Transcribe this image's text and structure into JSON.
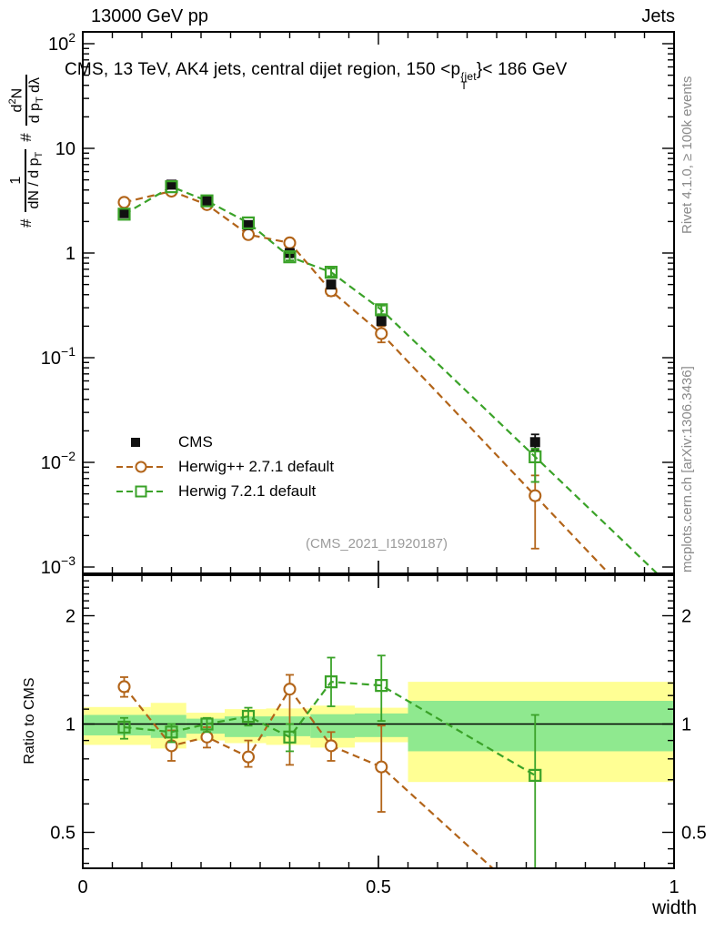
{
  "header": {
    "left": "13000 GeV pp",
    "right": "Jets"
  },
  "title": {
    "part1": "CMS, 13 TeV, AK4 jets, central dijet region, 150 <p",
    "sup": "{jet",
    "sub": "T",
    "part2": "}< 186 GeV"
  },
  "ylabel": {
    "hash1": "#",
    "frac1_num": "1",
    "frac1_den_a": "dN / d p",
    "frac1_den_sub": "T",
    "hash2": "#",
    "frac2_num_a": "d",
    "frac2_num_sup": "2",
    "frac2_num_b": "N",
    "frac2_den_a": "d p",
    "frac2_den_sub": "T",
    "frac2_den_b": " dλ"
  },
  "side_notes": {
    "top": "Rivet 4.1.0, ≥ 100k events",
    "bottom": "mcplots.cern.ch [arXiv:1306.3436]"
  },
  "watermark": "(CMS_2021_I1920187)",
  "legend": {
    "items": [
      {
        "label": "CMS",
        "marker": "filled-square",
        "line": "none"
      },
      {
        "label": "Herwig++ 2.7.1 default",
        "marker": "open-circle",
        "line": "dashed"
      },
      {
        "label": "Herwig 7.2.1 default",
        "marker": "open-square",
        "line": "dashed"
      }
    ]
  },
  "axes": {
    "x_tick_labels": [
      "0",
      "0.5",
      "1"
    ],
    "x_tick_values": [
      0,
      0.5,
      1
    ],
    "main_ytick_exponents": [
      2,
      1,
      0,
      -1,
      -2,
      -3
    ],
    "ratio_ytick_labels": [
      "2",
      "1",
      "0.5"
    ],
    "ratio_ytick_values": [
      2,
      1,
      0.5
    ]
  },
  "colors": {
    "frame": "#000000",
    "gray_text": "#8a8a8a",
    "watermark": "#9b9b9b"
  },
  "chart_data": {
    "type": "scatter",
    "title": "CMS, 13 TeV, AK4 jets, central dijet region, 150 < pT^{jet} < 186 GeV",
    "xlabel": "width",
    "xlim": [
      0,
      1
    ],
    "x": [
      0.07,
      0.15,
      0.21,
      0.28,
      0.35,
      0.42,
      0.505,
      0.765
    ],
    "main": {
      "yscale": "log",
      "ylim": [
        0.001,
        100
      ],
      "series": [
        {
          "name": "CMS",
          "marker": "square-filled",
          "color": "#111111",
          "line": "none",
          "y": [
            2.4,
            4.5,
            3.15,
            1.85,
            1.0,
            0.5,
            0.224,
            0.0156
          ],
          "yerr_lo": [
            null,
            null,
            null,
            null,
            null,
            null,
            null,
            0.013
          ],
          "yerr_hi": [
            null,
            null,
            null,
            null,
            null,
            null,
            null,
            0.0185
          ]
        },
        {
          "name": "Herwig++ 2.7.1 default",
          "marker": "circle-open",
          "color": "#b26419",
          "line": "dashed",
          "y": [
            3.05,
            3.9,
            2.9,
            1.5,
            1.25,
            0.435,
            0.17,
            0.0048
          ],
          "yerr_lo": [
            null,
            null,
            null,
            null,
            1.12,
            0.39,
            0.14,
            0.0015
          ],
          "yerr_hi": [
            null,
            null,
            null,
            null,
            1.38,
            0.47,
            0.2,
            0.0075
          ]
        },
        {
          "name": "Herwig 7.2.1 default",
          "marker": "square-open",
          "color": "#3aa228",
          "line": "dashed",
          "y": [
            2.35,
            4.3,
            3.15,
            1.94,
            0.92,
            0.655,
            0.287,
            0.0113
          ],
          "yerr_lo": [
            null,
            null,
            null,
            null,
            0.85,
            0.6,
            0.26,
            0.0065
          ],
          "yerr_hi": [
            null,
            null,
            null,
            null,
            1.0,
            0.71,
            0.315,
            0.0135
          ]
        }
      ]
    },
    "ratio": {
      "ylabel": "Ratio to CMS",
      "yscale": "log",
      "ylim": [
        0.4,
        2.52
      ],
      "reference_line": 1,
      "series": [
        {
          "name": "Herwig++ 2.7.1 default",
          "marker": "circle-open",
          "color": "#b26419",
          "line": "dashed",
          "y": [
            1.27,
            0.87,
            0.92,
            0.81,
            1.25,
            0.87,
            0.76,
            0.31
          ],
          "yerr_lo": [
            1.19,
            0.79,
            0.86,
            0.76,
            0.77,
            0.79,
            0.57,
            null
          ],
          "yerr_hi": [
            1.35,
            0.96,
            0.98,
            0.9,
            1.37,
            0.95,
            0.99,
            null
          ]
        },
        {
          "name": "Herwig 7.2.1 default",
          "marker": "square-open",
          "color": "#3aa228",
          "line": "dashed",
          "y": [
            0.98,
            0.95,
            1.0,
            1.05,
            0.92,
            1.31,
            1.28,
            0.72
          ],
          "yerr_lo": [
            0.91,
            0.89,
            0.95,
            0.99,
            0.84,
            1.12,
            1.02,
            0.3
          ],
          "yerr_hi": [
            1.04,
            1.0,
            1.04,
            1.11,
            1.0,
            1.53,
            1.55,
            1.06
          ]
        }
      ],
      "bands": [
        {
          "x0": 0.0,
          "x1": 0.115,
          "yellow": [
            0.875,
            1.115
          ],
          "green": [
            0.93,
            1.06
          ]
        },
        {
          "x0": 0.115,
          "x1": 0.175,
          "yellow": [
            0.855,
            1.145
          ],
          "green": [
            0.915,
            1.06
          ]
        },
        {
          "x0": 0.175,
          "x1": 0.24,
          "yellow": [
            0.9,
            1.075
          ],
          "green": [
            0.94,
            1.035
          ]
        },
        {
          "x0": 0.24,
          "x1": 0.31,
          "yellow": [
            0.885,
            1.1
          ],
          "green": [
            0.92,
            1.05
          ]
        },
        {
          "x0": 0.31,
          "x1": 0.385,
          "yellow": [
            0.875,
            1.105
          ],
          "green": [
            0.925,
            1.05
          ]
        },
        {
          "x0": 0.385,
          "x1": 0.46,
          "yellow": [
            0.86,
            1.125
          ],
          "green": [
            0.915,
            1.065
          ]
        },
        {
          "x0": 0.46,
          "x1": 0.55,
          "yellow": [
            0.89,
            1.11
          ],
          "green": [
            0.92,
            1.07
          ]
        },
        {
          "x0": 0.55,
          "x1": 1.0,
          "yellow": [
            0.69,
            1.31
          ],
          "green": [
            0.84,
            1.16
          ]
        }
      ],
      "band_colors": {
        "yellow": "#ffff94",
        "green": "#8fe98f"
      }
    }
  }
}
